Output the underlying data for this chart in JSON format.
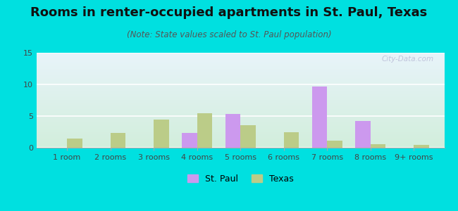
{
  "title": "Rooms in renter-occupied apartments in St. Paul, Texas",
  "subtitle": "(Note: State values scaled to St. Paul population)",
  "categories": [
    "1 room",
    "2 rooms",
    "3 rooms",
    "4 rooms",
    "5 rooms",
    "6 rooms",
    "7 rooms",
    "8 rooms",
    "9+ rooms"
  ],
  "stpaul_values": [
    0,
    0,
    0,
    2.3,
    5.3,
    0,
    9.7,
    4.2,
    0
  ],
  "texas_values": [
    1.5,
    2.3,
    4.4,
    5.4,
    3.6,
    2.5,
    1.1,
    0.6,
    0.5
  ],
  "stpaul_color": "#cc99ee",
  "texas_color": "#bbcc88",
  "ylim": [
    0,
    15
  ],
  "yticks": [
    0,
    5,
    10,
    15
  ],
  "background_color": "#00e0e0",
  "bar_width": 0.35,
  "title_fontsize": 13,
  "subtitle_fontsize": 8.5,
  "tick_fontsize": 8,
  "legend_fontsize": 9,
  "watermark": "City-Data.com"
}
